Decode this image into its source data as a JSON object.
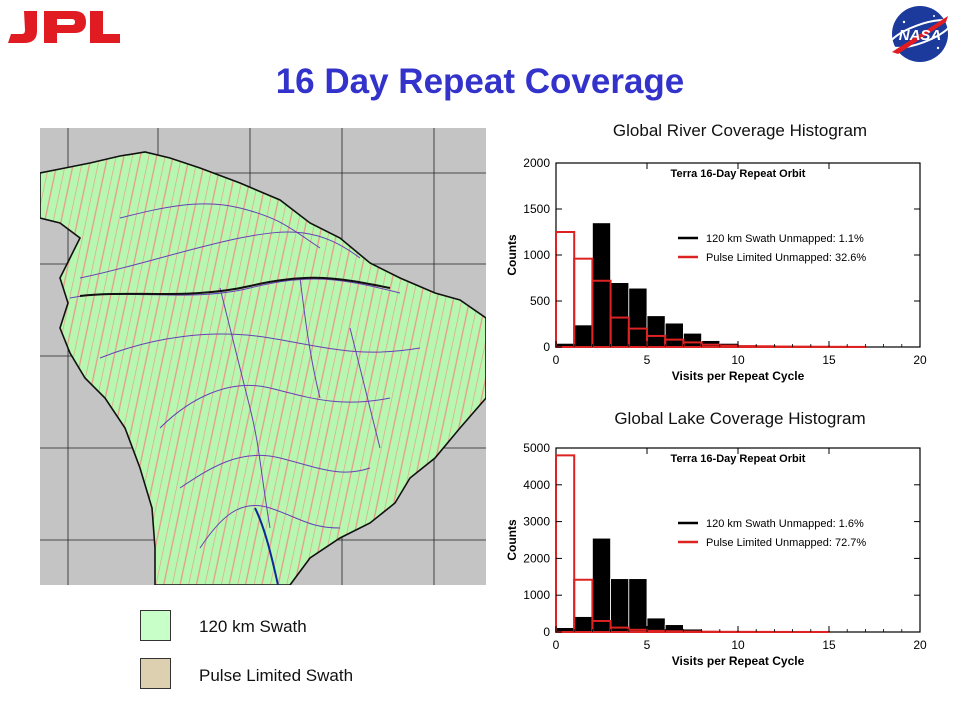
{
  "header": {
    "left_logo": "JPL",
    "right_logo": "NASA",
    "title": "16 Day Repeat Coverage"
  },
  "map_legend": {
    "items": [
      {
        "label": "120 km Swath",
        "color": "#c8ffc8"
      },
      {
        "label": "Pulse Limited Swath",
        "color": "#ddd0b0"
      }
    ]
  },
  "chart_data": [
    {
      "type": "bar",
      "title": "Global River Coverage Histogram",
      "subtitle": "Terra 16-Day Repeat Orbit",
      "xlabel": "Visits per Repeat Cycle",
      "ylabel": "Counts",
      "xlim": [
        0,
        20
      ],
      "ylim": [
        0,
        2000
      ],
      "xticks": [
        0,
        5,
        10,
        15,
        20
      ],
      "yticks": [
        0,
        500,
        1000,
        1500,
        2000
      ],
      "bins": [
        0,
        1,
        2,
        3,
        4,
        5,
        6,
        7,
        8,
        9,
        10,
        11,
        12,
        13,
        14,
        15,
        16,
        17,
        18,
        19
      ],
      "series": [
        {
          "name": "120 km Swath Unmapped: 1.1%",
          "color": "#000000",
          "style": "filled",
          "values": [
            40,
            240,
            1350,
            700,
            640,
            340,
            260,
            150,
            70,
            40,
            20,
            10,
            8,
            5,
            3,
            2,
            1,
            0,
            0,
            0
          ]
        },
        {
          "name": "Pulse Limited Unmapped: 32.6%",
          "color": "#dd2222",
          "style": "step",
          "values": [
            1250,
            960,
            720,
            320,
            200,
            120,
            80,
            50,
            25,
            15,
            10,
            8,
            5,
            4,
            3,
            2,
            1,
            0,
            0,
            0
          ]
        }
      ],
      "grid": false,
      "legend": "top-right"
    },
    {
      "type": "bar",
      "title": "Global Lake Coverage Histogram",
      "subtitle": "Terra 16-Day Repeat Orbit",
      "xlabel": "Visits per Repeat Cycle",
      "ylabel": "Counts",
      "xlim": [
        0,
        20
      ],
      "ylim": [
        0,
        5000
      ],
      "xticks": [
        0,
        5,
        10,
        15,
        20
      ],
      "yticks": [
        0,
        1000,
        2000,
        3000,
        4000,
        5000
      ],
      "bins": [
        0,
        1,
        2,
        3,
        4,
        5,
        6,
        7,
        8,
        9,
        10,
        11,
        12,
        13,
        14,
        15,
        16,
        17,
        18,
        19
      ],
      "series": [
        {
          "name": "120 km Swath Unmapped: 1.6%",
          "color": "#000000",
          "style": "filled",
          "values": [
            120,
            420,
            2550,
            1450,
            1450,
            380,
            200,
            80,
            40,
            20,
            10,
            5,
            3,
            2,
            1,
            0,
            0,
            0,
            0,
            0
          ]
        },
        {
          "name": "Pulse Limited Unmapped: 72.7%",
          "color": "#dd2222",
          "style": "step",
          "values": [
            4800,
            1420,
            300,
            120,
            60,
            30,
            20,
            12,
            8,
            5,
            4,
            3,
            2,
            1,
            1,
            0,
            0,
            0,
            0,
            0
          ]
        }
      ],
      "grid": false,
      "legend": "top-right"
    }
  ]
}
